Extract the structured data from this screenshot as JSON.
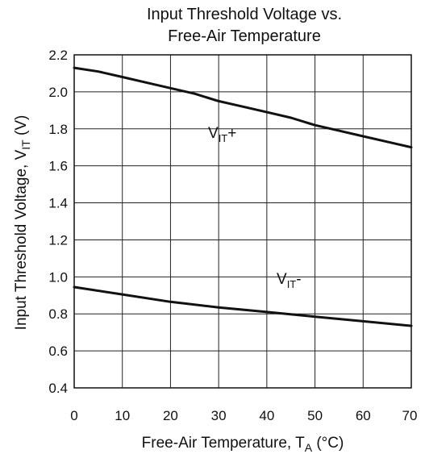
{
  "chart_data": {
    "type": "line",
    "title_lines": [
      "Input Threshold Voltage vs.",
      "Free-Air Temperature"
    ],
    "xlabel": {
      "text": "Free-Air Temperature, T",
      "sub": "A",
      "suffix": " (°C)"
    },
    "ylabel": {
      "text": "Input Threshold Voltage, V",
      "sub": "IT",
      "suffix": " (V)"
    },
    "xlim": [
      0,
      70
    ],
    "ylim": [
      0.4,
      2.2
    ],
    "x_ticks": [
      0,
      10,
      20,
      30,
      40,
      50,
      60,
      70
    ],
    "y_ticks": [
      "0.4",
      "0.6",
      "0.8",
      "1.0",
      "1.2",
      "1.4",
      "1.6",
      "1.8",
      "2.0",
      "2.2"
    ],
    "grid": true,
    "series": [
      {
        "name": "V_IT+",
        "label": {
          "main": "V",
          "sub": "IT",
          "suffix": "+"
        },
        "x": [
          0,
          5,
          10,
          15,
          20,
          25,
          30,
          35,
          40,
          45,
          50,
          55,
          60,
          65,
          70
        ],
        "y": [
          2.13,
          2.11,
          2.08,
          2.05,
          2.02,
          1.99,
          1.95,
          1.92,
          1.89,
          1.86,
          1.82,
          1.79,
          1.76,
          1.73,
          1.7
        ]
      },
      {
        "name": "V_IT-",
        "label": {
          "main": "V",
          "sub": "IT",
          "suffix": "-"
        },
        "x": [
          0,
          10,
          20,
          30,
          40,
          50,
          60,
          70
        ],
        "y": [
          0.945,
          0.905,
          0.865,
          0.835,
          0.81,
          0.785,
          0.76,
          0.735
        ]
      }
    ]
  }
}
